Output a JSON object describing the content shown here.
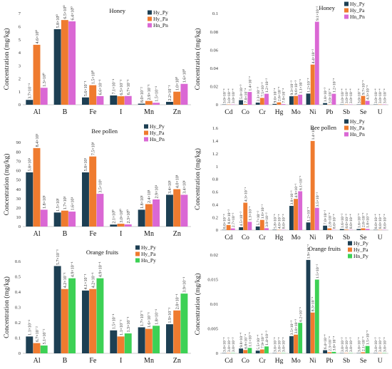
{
  "colors": {
    "Hy_Py": "#1d3f53",
    "Hy_Pa": "#ef7b2f",
    "Hn_Pn": "#da68d4",
    "Hn_Py": "#3dd155"
  },
  "chart_data": [
    {
      "type": "bar",
      "title": "Honey",
      "ylabel": "Concentration (mg/kg)",
      "categories": [
        "Al",
        "B",
        "Fe",
        "I",
        "Mn",
        "Zn"
      ],
      "ylim": [
        0,
        7
      ],
      "yticks": [
        0,
        1,
        2,
        3,
        4,
        5,
        6,
        7
      ],
      "legend_position": "top-right",
      "series": [
        {
          "name": "Hy_Py",
          "color": "#1d3f53",
          "values": [
            0.37,
            5.8,
            0.56,
            0.71,
            0.08,
            0.22
          ],
          "labels": [
            "3.7×10⁻¹",
            "5.8×10⁰",
            "5.6×10⁻¹",
            "7.1×10⁻¹",
            "8.0×10⁻²",
            "2.2×10⁻¹"
          ]
        },
        {
          "name": "Hy_Pa",
          "color": "#ef7b2f",
          "values": [
            4.6,
            6.5,
            1.5,
            0.65,
            0.29,
            1.0
          ],
          "labels": [
            "4.6×10⁰",
            "6.5×10⁰",
            "1.5×10⁰",
            "6.5×10⁻¹",
            "2.9×10⁻¹",
            "1.0×10⁰"
          ]
        },
        {
          "name": "Hn_Pn",
          "color": "#da68d4",
          "values": [
            1.3,
            6.4,
            0.66,
            0.67,
            0.15,
            1.6
          ],
          "labels": [
            "1.3×10⁰",
            "6.4×10⁰",
            "6.6×10⁻¹",
            "6.7×10⁻¹",
            "1.5×10⁻¹",
            "1.6×10⁰"
          ]
        }
      ]
    },
    {
      "type": "bar",
      "title": "Honey",
      "ylabel": "Concentration (mg/kg)",
      "categories": [
        "Cd",
        "Co",
        "Cr",
        "Hg",
        "Mo",
        "Ni",
        "Pb",
        "Sb",
        "Se",
        "U"
      ],
      "ylim": [
        0,
        0.1
      ],
      "yticks": [
        0,
        0.02,
        0.04,
        0.06,
        0.08,
        0.1
      ],
      "ytick_labels": [
        "0",
        "0.02",
        "0.04",
        "0.06",
        "0.08",
        "0.1"
      ],
      "legend_position": "top-right",
      "series": [
        {
          "name": "Hy_Py",
          "color": "#1d3f53",
          "values": [
            0.0003,
            0.005,
            0.0023,
            0.0009,
            0.0093,
            0.0122,
            0.0018,
            0.0003,
            0.0003,
            0.0003
          ],
          "labels": [
            "3.0×10⁻⁴",
            "5.0×10⁻³",
            "2.3×10⁻³",
            "9.0×10⁻⁴",
            "9.3×10⁻³",
            "1.2×10⁻²",
            "1.8×10⁻³",
            "3.0×10⁻⁴",
            "3.0×10⁻⁴",
            "3.0×10⁻⁴"
          ]
        },
        {
          "name": "Hy_Pa",
          "color": "#ef7b2f",
          "values": [
            0.0003,
            0.0007,
            0.0075,
            0.0026,
            0.0096,
            0.044,
            0.0003,
            0.0003,
            0.0097,
            0.0003
          ],
          "labels": [
            "3.0×10⁻⁴",
            "7.0×10⁻⁴",
            "7.5×10⁻³",
            "2.6×10⁻³",
            "9.6×10⁻³",
            "4.4×10⁻²",
            "3.0×10⁻⁴",
            "3.0×10⁻⁴",
            "9.7×10⁻³",
            "3.0×10⁻⁴"
          ]
        },
        {
          "name": "Hn_Pn",
          "color": "#da68d4",
          "values": [
            0.0003,
            0.014,
            0.012,
            0.0007,
            0.011,
            0.091,
            0.012,
            0.0003,
            0.0043,
            0.0003
          ],
          "labels": [
            "3.0×10⁻⁴",
            "1.4×10⁻²",
            "1.2×10⁻²",
            "7.0×10⁻⁴",
            "1.1×10⁻²",
            "9.1×10⁻²",
            "1.2×10⁻²",
            "3.0×10⁻⁴",
            "4.3×10⁻³",
            "3.0×10⁻⁴"
          ]
        }
      ]
    },
    {
      "type": "bar",
      "title": "Bee pollen",
      "ylabel": "Concentration (mg/kg)",
      "categories": [
        "Al",
        "B",
        "Fe",
        "I",
        "Mn",
        "Zn"
      ],
      "ylim": [
        0,
        90
      ],
      "yticks": [
        0,
        10,
        20,
        30,
        40,
        50,
        60,
        70,
        80,
        90
      ],
      "legend_position": "top-right",
      "series": [
        {
          "name": "Hy_Py",
          "color": "#1d3f53",
          "values": [
            58,
            15,
            58,
            2.1,
            18,
            34
          ],
          "labels": [
            "5.8×10¹",
            "1.5×10¹",
            "5.8×10¹",
            "2.1×10⁰",
            "1.8×10¹",
            "3.4×10¹"
          ]
        },
        {
          "name": "Hy_Pa",
          "color": "#ef7b2f",
          "values": [
            84,
            17,
            75,
            3.0,
            24,
            40
          ],
          "labels": [
            "8.4×10¹",
            "1.7×10¹",
            "7.5×10¹",
            "3.0×10⁰",
            "2.4×10¹",
            "4.0×10¹"
          ]
        },
        {
          "name": "Hn_Pn",
          "color": "#da68d4",
          "values": [
            18,
            16,
            35,
            2.3,
            29,
            34
          ],
          "labels": [
            "1.8×10¹",
            "1.6×10¹",
            "3.5×10¹",
            "2.3×10⁰",
            "2.9×10¹",
            "3.4×10¹"
          ]
        }
      ]
    },
    {
      "type": "bar",
      "title": "Bee pollen",
      "ylabel": "Concentration (mg/kg)",
      "categories": [
        "Cd",
        "Co",
        "Cr",
        "Hg",
        "Mo",
        "Ni",
        "Pb",
        "Sb",
        "Se",
        "U"
      ],
      "ylim": [
        0,
        1.6
      ],
      "yticks": [
        0,
        0.2,
        0.4,
        0.6,
        0.8,
        1.0,
        1.2,
        1.4,
        1.6
      ],
      "ytick_labels": [
        "0",
        "0.2",
        "0.4",
        "0.6",
        "0.8",
        "1",
        "1.2",
        "1.4",
        "1.6"
      ],
      "legend_position": "top-right",
      "series": [
        {
          "name": "Hy_Py",
          "color": "#1d3f53",
          "values": [
            0.0008,
            0.045,
            0.057,
            0.0058,
            0.38,
            0.12,
            0.07,
            0.016,
            0.016,
            0.0008
          ],
          "labels": [
            "8.0×10⁻⁴",
            "4.5×10⁻²",
            "5.7×10⁻²",
            "5.8×10⁻³",
            "3.8×10⁻¹",
            "1.2×10⁻¹",
            "7.0×10⁻²",
            "1.6×10⁻²",
            "1.6×10⁻²",
            "8.0×10⁻⁴"
          ]
        },
        {
          "name": "Hy_Pa",
          "color": "#ef7b2f",
          "values": [
            0.08,
            0.43,
            0.16,
            0.004,
            0.49,
            1.4,
            0.028,
            0.008,
            0.028,
            0.0008
          ],
          "labels": [
            "8.0×10⁻²",
            "4.3×10⁻¹",
            "1.6×10⁻¹",
            "4.0×10⁻³",
            "4.9×10⁻¹",
            "1.4×10⁰",
            "2.8×10⁻²",
            "8.0×10⁻³",
            "2.8×10⁻²",
            "8.0×10⁻⁴"
          ]
        },
        {
          "name": "Hn_Pn",
          "color": "#da68d4",
          "values": [
            0.027,
            0.13,
            0.03,
            0.0008,
            0.61,
            0.35,
            0.0008,
            0.0008,
            0.018,
            0.0008
          ],
          "labels": [
            "2.7×10⁻²",
            "1.3×10⁻¹",
            "3.0×10⁻²",
            "8.0×10⁻⁴",
            "6.1×10⁻¹",
            "3.5×10⁻¹",
            "8.0×10⁻⁴",
            "8.0×10⁻⁴",
            "1.8×10⁻²",
            "8.0×10⁻⁴"
          ]
        }
      ]
    },
    {
      "type": "bar",
      "title": "Orange fruits",
      "ylabel": "Concentration (mg/kg)",
      "categories": [
        "Al",
        "B",
        "Fe",
        "I",
        "Mn",
        "Zn"
      ],
      "ylim": [
        0,
        0.6
      ],
      "yticks": [
        0,
        0.1,
        0.2,
        0.3,
        0.4,
        0.5,
        0.6
      ],
      "ytick_labels": [
        "0",
        "0.1",
        "0.2",
        "0.3",
        "0.4",
        "0.5",
        "0.6"
      ],
      "legend_position": "top-right",
      "series": [
        {
          "name": "Hy_Py",
          "color": "#1d3f53",
          "values": [
            0.11,
            0.57,
            0.41,
            0.15,
            0.17,
            0.19
          ],
          "labels": [
            "1.1×10⁻¹",
            "5.7×10⁻¹",
            "4.1×10⁻¹",
            "1.5×10⁻¹",
            "1.7×10⁻¹",
            "1.9×10⁻¹"
          ]
        },
        {
          "name": "Hy_Pa",
          "color": "#ef7b2f",
          "values": [
            0.067,
            0.42,
            0.42,
            0.11,
            0.16,
            0.28
          ],
          "labels": [
            "6.7×10⁻²",
            "4.2×10⁻¹",
            "4.2×10⁻¹",
            "1.1×10⁻¹",
            "1.6×10⁻¹",
            "2.8×10⁻¹"
          ]
        },
        {
          "name": "Hn_Py",
          "color": "#3dd155",
          "values": [
            0.051,
            0.49,
            0.49,
            0.13,
            0.18,
            0.39
          ],
          "labels": [
            "5.1×10⁻²",
            "4.9×10⁻¹",
            "4.9×10⁻¹",
            "1.3×10⁻¹",
            "1.8×10⁻¹",
            "3.9×10⁻¹"
          ]
        }
      ]
    },
    {
      "type": "bar",
      "title": "Orange fruits",
      "ylabel": "Concentration (mg/kg)",
      "categories": [
        "Cd",
        "Co",
        "Cr",
        "Hg",
        "Mo",
        "Ni",
        "Pb",
        "Sb",
        "Se",
        "U"
      ],
      "ylim": [
        0,
        0.02
      ],
      "yticks": [
        0,
        0.005,
        0.01,
        0.015,
        0.02
      ],
      "ytick_labels": [
        "0",
        "0.005",
        "0.01",
        "0.015",
        "0.02"
      ],
      "legend_position": "top-right",
      "series": [
        {
          "name": "Hy_Py",
          "color": "#1d3f53",
          "values": [
            3e-05,
            0.00098,
            0.00055,
            3e-05,
            0.0035,
            0.019,
            0.00064,
            3e-05,
            3e-05,
            3e-05
          ],
          "labels": [
            "3.0×10⁻⁵",
            "9.8×10⁻⁴",
            "5.5×10⁻⁴",
            "3.0×10⁻⁵",
            "3.5×10⁻³",
            "1.9×10⁻²",
            "6.4×10⁻⁴",
            "3.0×10⁻⁵",
            "3.0×10⁻⁵",
            "3.0×10⁻⁵"
          ]
        },
        {
          "name": "Hy_Pa",
          "color": "#ef7b2f",
          "values": [
            3e-05,
            0.00068,
            0.00079,
            3e-05,
            0.0038,
            0.0083,
            0.00023,
            3e-05,
            0.00021,
            3e-05
          ],
          "labels": [
            "3.0×10⁻⁵",
            "6.8×10⁻⁴",
            "7.9×10⁻⁴",
            "3.0×10⁻⁵",
            "3.8×10⁻³",
            "8.3×10⁻³",
            "2.3×10⁻⁴",
            "3.0×10⁻⁵",
            "2.1×10⁻⁴",
            "3.0×10⁻⁵"
          ]
        },
        {
          "name": "Hn_Py",
          "color": "#3dd155",
          "values": [
            3e-05,
            0.0011,
            0.0014,
            3e-05,
            0.0062,
            0.015,
            0.0003,
            3e-05,
            0.0015,
            3e-05
          ],
          "labels": [
            "3.0×10⁻⁵",
            "1.1×10⁻³",
            "1.4×10⁻³",
            "3.0×10⁻⁵",
            "6.2×10⁻³",
            "1.5×10⁻²",
            "3.0×10⁻⁴",
            "3.0×10⁻⁵",
            "1.5×10⁻³",
            "3.0×10⁻⁵"
          ]
        }
      ]
    }
  ]
}
